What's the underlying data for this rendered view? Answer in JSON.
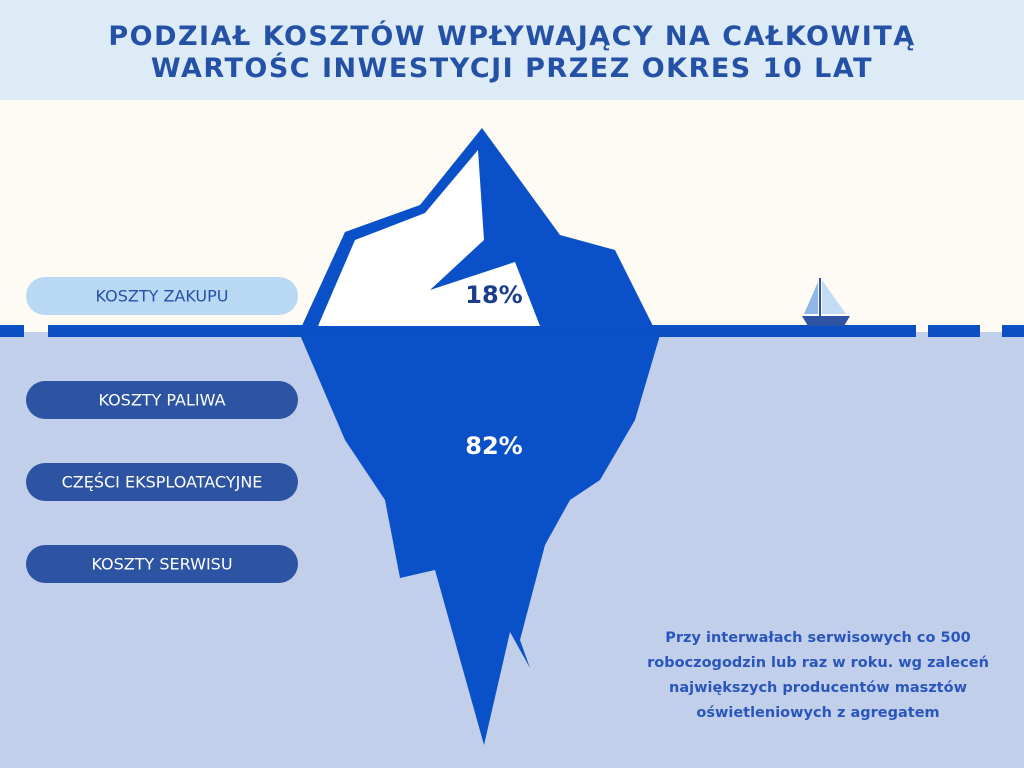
{
  "header": {
    "title_lines": [
      "PODZIAŁ KOSZTÓW WPŁYWAJĄCY NA CAŁKOWITĄ",
      "WARTOŚC INWESTYCJI PRZEZ OKRES 10 LAT"
    ]
  },
  "labels": [
    "KOSZTY ZAKUPU",
    "KOSZTY PALIWA",
    "CZĘŚCI EKSPLOATACYJNE",
    "KOSZTY SERWISU"
  ],
  "iceberg": {
    "above": "18%",
    "below": "82%"
  },
  "note": {
    "lines": [
      "Przy interwałach serwisowych co 500",
      "roboczogodzin lub raz w roku. wg zaleceń",
      "największych producentów masztów",
      "oświetleniowych z agregatem"
    ]
  }
}
